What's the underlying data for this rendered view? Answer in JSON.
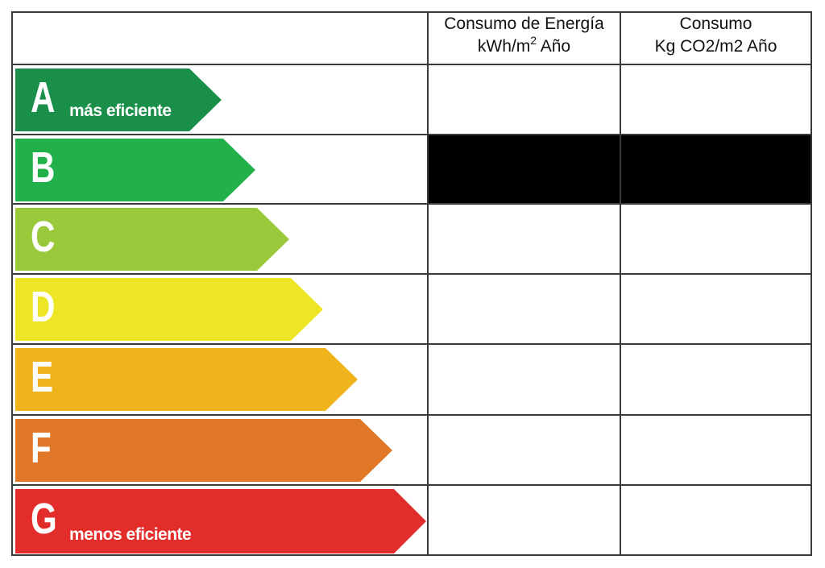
{
  "header": {
    "col_energy_line1": "Consumo de Energía",
    "col_energy_line2_prefix": "kWh/m",
    "col_energy_line2_sup": "2",
    "col_energy_line2_suffix": " Año",
    "col_co2_line1": "Consumo",
    "col_co2_line2": "Kg CO2/m2 Año"
  },
  "ratings": [
    {
      "letter": "A",
      "caption": "más eficiente",
      "color": "#1a8f4a"
    },
    {
      "letter": "B",
      "caption": "",
      "color": "#22b04b"
    },
    {
      "letter": "C",
      "caption": "",
      "color": "#9bc93c"
    },
    {
      "letter": "D",
      "caption": "",
      "color": "#ece625"
    },
    {
      "letter": "E",
      "caption": "",
      "color": "#efb41c"
    },
    {
      "letter": "F",
      "caption": "",
      "color": "#e07828"
    },
    {
      "letter": "G",
      "caption": "menos eficiente",
      "color": "#e22d2a"
    }
  ],
  "highlighted_rating": "B",
  "colors": {
    "border": "#3a3a3a",
    "highlight_fill": "#000000"
  }
}
